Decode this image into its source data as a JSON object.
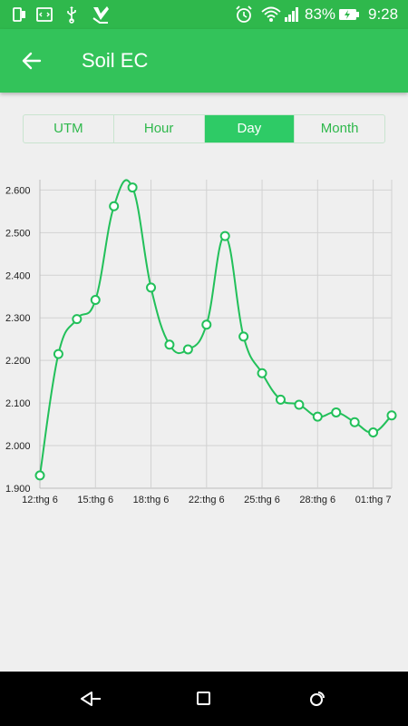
{
  "status_bar": {
    "battery_percent": "83%",
    "time": "9:28",
    "icons": [
      "sim-icon",
      "code-icon",
      "usb-icon",
      "app-check-icon",
      "alarm-icon",
      "wifi-icon",
      "signal-icon",
      "battery-charging-icon"
    ]
  },
  "app_bar": {
    "title": "Soil EC",
    "back_icon": "arrow-left-icon"
  },
  "tabs": [
    {
      "label": "UTM",
      "active": false
    },
    {
      "label": "Hour",
      "active": false
    },
    {
      "label": "Day",
      "active": true
    },
    {
      "label": "Month",
      "active": false
    }
  ],
  "colors": {
    "status_bar": "#2fb84c",
    "app_bar": "#33c35a",
    "accent": "#2ecb66",
    "line": "#22c05a",
    "background": "#efefef"
  },
  "chart_data": {
    "type": "line",
    "title": "",
    "xlabel": "",
    "ylabel": "",
    "x_start": "12:thg 6",
    "x_ticks": [
      "12:thg 6",
      "15:thg 6",
      "18:thg 6",
      "22:thg 6",
      "25:thg 6",
      "28:thg 6",
      "01:thg 7"
    ],
    "y_ticks": [
      "1.900",
      "2.000",
      "2.100",
      "2.200",
      "2.300",
      "2.400",
      "2.500",
      "2.600"
    ],
    "ylim": [
      1.9,
      2.62
    ],
    "grid": true,
    "legend": "none",
    "series": [
      {
        "x": [
          0,
          1,
          2,
          3,
          4,
          5,
          6,
          7,
          8,
          9,
          10,
          11,
          12,
          13,
          14,
          15,
          16,
          17,
          18,
          19
        ],
        "values": [
          1.93,
          2.215,
          2.297,
          2.342,
          2.562,
          2.606,
          2.371,
          2.237,
          2.226,
          2.284,
          2.492,
          2.256,
          2.17,
          2.108,
          2.096,
          2.068,
          2.078,
          2.055,
          2.031,
          2.071
        ]
      }
    ]
  },
  "nav_bar": {
    "back_icon": "nav-back-icon",
    "home_icon": "nav-home-icon",
    "recents_icon": "nav-recents-icon"
  }
}
